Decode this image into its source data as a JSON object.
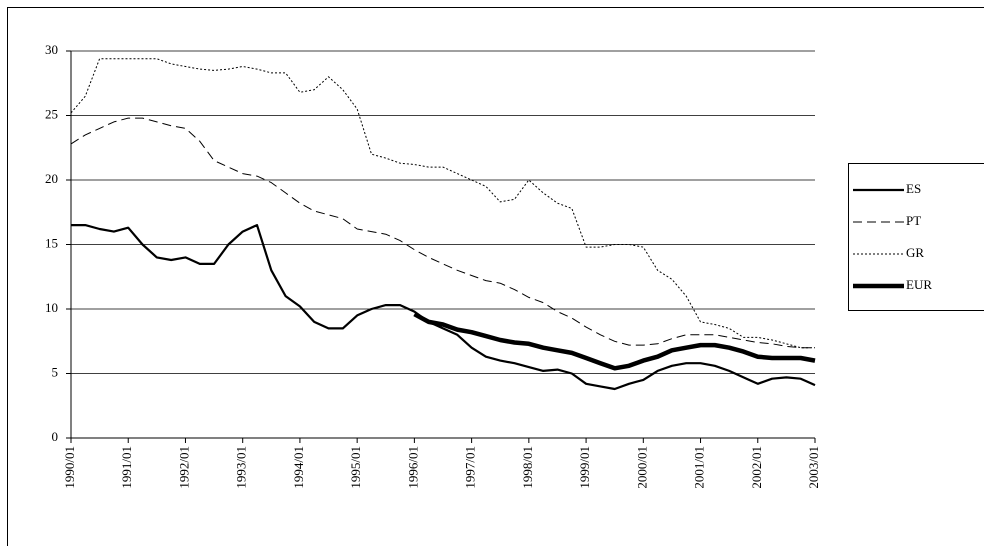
{
  "chart_data": {
    "type": "line",
    "categories": [
      "1990/01",
      null,
      null,
      null,
      "1991/01",
      null,
      null,
      null,
      "1992/01",
      null,
      null,
      null,
      "1993/01",
      null,
      null,
      null,
      "1994/01",
      null,
      null,
      null,
      "1995/01",
      null,
      null,
      null,
      "1996/01",
      null,
      null,
      null,
      "1997/01",
      null,
      null,
      null,
      "1998/01",
      null,
      null,
      null,
      "1999/01",
      null,
      null,
      null,
      "2000/01",
      null,
      null,
      null,
      "2001/01",
      null,
      null,
      null,
      "2002/01",
      null,
      null,
      null,
      "2003/01"
    ],
    "ylim": [
      0,
      30
    ],
    "yticks": [
      0,
      5,
      10,
      15,
      20,
      25,
      30
    ],
    "grid": true,
    "legend": "right",
    "series": [
      {
        "name": "ES",
        "color": "#000000",
        "width": 2.2,
        "dash": "solid",
        "values": [
          16.5,
          16.5,
          16.2,
          16.0,
          16.3,
          15.0,
          14.0,
          13.8,
          14.0,
          13.5,
          13.5,
          15.0,
          16.0,
          16.5,
          13.0,
          11.0,
          10.2,
          9.0,
          8.5,
          8.5,
          9.5,
          10.0,
          10.3,
          10.3,
          9.8,
          9.0,
          8.5,
          8.0,
          7.0,
          6.3,
          6.0,
          5.8,
          5.5,
          5.2,
          5.3,
          5.0,
          4.2,
          4.0,
          3.8,
          4.2,
          4.5,
          5.2,
          5.6,
          5.8,
          5.8,
          5.6,
          5.2,
          4.7,
          4.2,
          4.6,
          4.7,
          4.6,
          4.1
        ]
      },
      {
        "name": "PT",
        "color": "#000000",
        "width": 1,
        "dash": "dashed",
        "values": [
          22.8,
          23.5,
          24.0,
          24.5,
          24.8,
          24.8,
          24.5,
          24.2,
          24.0,
          23.0,
          21.5,
          21.0,
          20.5,
          20.3,
          19.8,
          19.0,
          18.2,
          17.6,
          17.3,
          17.0,
          16.2,
          16.0,
          15.8,
          15.3,
          14.6,
          14.0,
          13.5,
          13.0,
          12.6,
          12.2,
          12.0,
          11.5,
          10.9,
          10.5,
          9.8,
          9.3,
          8.6,
          8.0,
          7.5,
          7.2,
          7.2,
          7.3,
          7.7,
          8.0,
          8.0,
          8.0,
          7.8,
          7.6,
          7.4,
          7.3,
          7.1,
          7.0,
          7.0
        ]
      },
      {
        "name": "GR",
        "color": "#000000",
        "width": 1,
        "dash": "dotted",
        "values": [
          25.2,
          26.5,
          29.4,
          29.4,
          29.4,
          29.4,
          29.4,
          29.0,
          28.8,
          28.6,
          28.5,
          28.6,
          28.8,
          28.6,
          28.3,
          28.3,
          26.8,
          27.0,
          28.0,
          27.0,
          25.5,
          22.0,
          21.7,
          21.3,
          21.2,
          21.0,
          21.0,
          20.5,
          20.0,
          19.5,
          18.3,
          18.5,
          20.0,
          19.0,
          18.2,
          17.8,
          14.8,
          14.8,
          15.0,
          15.0,
          14.8,
          13.0,
          12.3,
          11.0,
          9.0,
          8.8,
          8.5,
          7.8,
          7.8,
          7.6,
          7.3,
          7.0,
          7.0
        ]
      },
      {
        "name": "EUR",
        "color": "#000000",
        "width": 4.5,
        "dash": "solid",
        "values": [
          null,
          null,
          null,
          null,
          null,
          null,
          null,
          null,
          null,
          null,
          null,
          null,
          null,
          null,
          null,
          null,
          null,
          null,
          null,
          null,
          null,
          null,
          null,
          null,
          9.6,
          9.0,
          8.8,
          8.4,
          8.2,
          7.9,
          7.6,
          7.4,
          7.3,
          7.0,
          6.8,
          6.6,
          6.2,
          5.8,
          5.4,
          5.6,
          6.0,
          6.3,
          6.8,
          7.0,
          7.2,
          7.2,
          7.0,
          6.7,
          6.3,
          6.2,
          6.2,
          6.2,
          6.0
        ]
      }
    ]
  }
}
